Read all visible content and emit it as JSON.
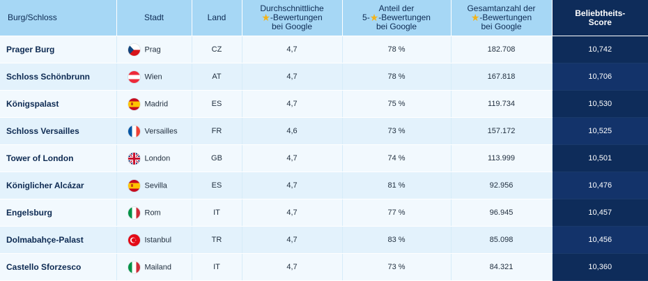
{
  "table": {
    "headers": {
      "castle": "Burg/Schloss",
      "city": "Stadt",
      "country": "Land",
      "avg_rating": {
        "line1": "Durchschnittliche",
        "line2": "-Bewertungen",
        "line3": "bei Google"
      },
      "five_star_share": {
        "line1": "Anteil der",
        "line2a": "5-",
        "line2b": "-Bewertungen",
        "line3": "bei Google"
      },
      "total_ratings": {
        "line1": "Gesamtanzahl der",
        "line2": "-Bewertungen",
        "line3": "bei Google"
      },
      "score": {
        "line1": "Beliebtheits-",
        "line2": "Score"
      }
    },
    "star_icon": "★",
    "rows": [
      {
        "name": "Prager Burg",
        "city": "Prag",
        "flag": "cz",
        "country": "CZ",
        "avg": "4,7",
        "share": "78 %",
        "total": "182.708",
        "score": "10,742"
      },
      {
        "name": "Schloss Schönbrunn",
        "city": "Wien",
        "flag": "at",
        "country": "AT",
        "avg": "4,7",
        "share": "78 %",
        "total": "167.818",
        "score": "10,706"
      },
      {
        "name": "Königspalast",
        "city": "Madrid",
        "flag": "es",
        "country": "ES",
        "avg": "4,7",
        "share": "75 %",
        "total": "119.734",
        "score": "10,530"
      },
      {
        "name": "Schloss Versailles",
        "city": "Versailles",
        "flag": "fr",
        "country": "FR",
        "avg": "4,6",
        "share": "73 %",
        "total": "157.172",
        "score": "10,525"
      },
      {
        "name": "Tower of London",
        "city": "London",
        "flag": "gb",
        "country": "GB",
        "avg": "4,7",
        "share": "74 %",
        "total": "113.999",
        "score": "10,501"
      },
      {
        "name": "Königlicher Alcázar",
        "city": "Sevilla",
        "flag": "es",
        "country": "ES",
        "avg": "4,7",
        "share": "81 %",
        "total": "92.956",
        "score": "10,476"
      },
      {
        "name": "Engelsburg",
        "city": "Rom",
        "flag": "it",
        "country": "IT",
        "avg": "4,7",
        "share": "77 %",
        "total": "96.945",
        "score": "10,457"
      },
      {
        "name": "Dolmabahçe-Palast",
        "city": "Istanbul",
        "flag": "tr",
        "country": "TR",
        "avg": "4,7",
        "share": "83 %",
        "total": "85.098",
        "score": "10,456"
      },
      {
        "name": "Castello Sforzesco",
        "city": "Mailand",
        "flag": "it",
        "country": "IT",
        "avg": "4,7",
        "share": "73 %",
        "total": "84.321",
        "score": "10,360"
      }
    ]
  },
  "colors": {
    "header_bg": "#a6d7f5",
    "score_bg": "#0e2c5a",
    "row_odd": "#f2f9fe",
    "row_even": "#e3f2fc",
    "star": "#f3b31a"
  }
}
